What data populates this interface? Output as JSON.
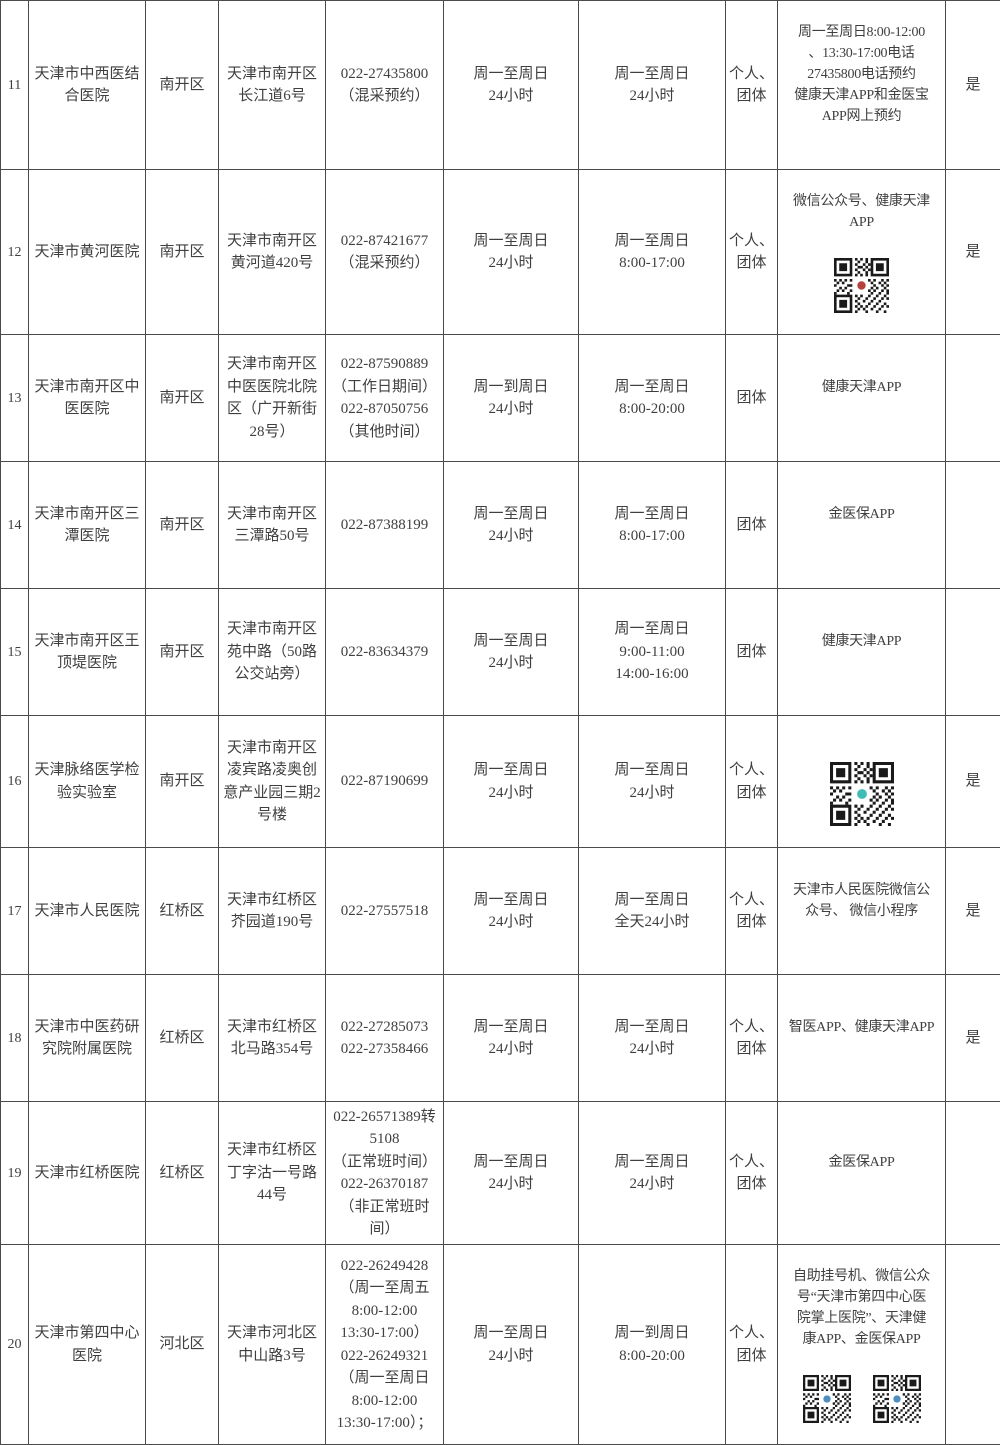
{
  "colors": {
    "border": "#4a4a4a",
    "text": "#3f3f3f",
    "qr_center_red": "#b5423c",
    "qr_center_teal": "#3fbdb4",
    "qr_center_blue": "#4f8fc0"
  },
  "table": {
    "rows": [
      {
        "index": "11",
        "name": "天津市中西医结\n合医院",
        "district": "南开区",
        "address": "天津市南开区\n长江道6号",
        "phone": "022-27435800\n（混采预约）",
        "hours1": "周一至周日\n24小时",
        "hours2": "周一至周日\n24小时",
        "target": "个人、\n团体",
        "appointment": "周一至周日8:00-12:00\n、13:30-17:00电话\n27435800电话预约\n健康天津APP和金医宝\nAPP网上预约",
        "confirm": "是",
        "qr": null
      },
      {
        "index": "12",
        "name": "天津市黄河医院",
        "district": "南开区",
        "address": "天津市南开区\n黄河道420号",
        "phone": "022-87421677\n（混采预约）",
        "hours1": "周一至周日\n24小时",
        "hours2": "周一至周日\n8:00-17:00",
        "target": "个人、\n团体",
        "appointment": "微信公众号、健康天津\nAPP",
        "confirm": "是",
        "qr": {
          "count": 1,
          "color": "#b5423c",
          "size": 55
        }
      },
      {
        "index": "13",
        "name": "天津市南开区中\n医医院",
        "district": "南开区",
        "address": "天津市南开区\n中医医院北院\n区（广开新街\n28号）",
        "phone": "022-87590889\n（工作日期间）\n022-87050756\n（其他时间）",
        "hours1": "周一到周日\n24小时",
        "hours2": "周一至周日\n8:00-20:00",
        "target": "团体",
        "appointment": "健康天津APP",
        "confirm": "",
        "qr": null
      },
      {
        "index": "14",
        "name": "天津市南开区三\n潭医院",
        "district": "南开区",
        "address": "天津市南开区\n三潭路50号",
        "phone": "022-87388199",
        "hours1": "周一至周日\n24小时",
        "hours2": "周一至周日\n8:00-17:00",
        "target": "团体",
        "appointment": "金医保APP",
        "confirm": "",
        "qr": null
      },
      {
        "index": "15",
        "name": "天津市南开区王\n顶堤医院",
        "district": "南开区",
        "address": "天津市南开区\n苑中路（50路\n公交站旁）",
        "phone": "022-83634379",
        "hours1": "周一至周日\n24小时",
        "hours2": "周一至周日\n9:00-11:00\n14:00-16:00",
        "target": "团体",
        "appointment": "健康天津APP",
        "confirm": "",
        "qr": null
      },
      {
        "index": "16",
        "name": "天津脉络医学检\n验实验室",
        "district": "南开区",
        "address": "天津市南开区\n凌宾路凌奥创\n意产业园三期2\n号楼",
        "phone": "022-87190699",
        "hours1": "周一至周日\n24小时",
        "hours2": "周一至周日\n24小时",
        "target": "个人、\n团体",
        "appointment": "",
        "confirm": "是",
        "qr": {
          "count": 1,
          "color": "#3fbdb4",
          "size": 64
        }
      },
      {
        "index": "17",
        "name": "天津市人民医院",
        "district": "红桥区",
        "address": "天津市红桥区\n芥园道190号",
        "phone": "022-27557518",
        "hours1": "周一至周日\n24小时",
        "hours2": "周一至周日\n全天24小时",
        "target": "个人、\n团体",
        "appointment": "天津市人民医院微信公\n众号、 微信小程序",
        "confirm": "是",
        "qr": null
      },
      {
        "index": "18",
        "name": "天津市中医药研\n究院附属医院",
        "district": "红桥区",
        "address": "天津市红桥区\n北马路354号",
        "phone": "022-27285073\n022-27358466",
        "hours1": "周一至周日\n24小时",
        "hours2": "周一至周日\n24小时",
        "target": "个人、\n团体",
        "appointment": "智医APP、健康天津APP",
        "confirm": "是",
        "qr": null
      },
      {
        "index": "19",
        "name": "天津市红桥医院",
        "district": "红桥区",
        "address": "天津市红桥区\n丁字沽一号路\n44号",
        "phone": "022-26571389转\n5108\n（正常班时间）\n022-26370187\n（非正常班时\n间）",
        "hours1": "周一至周日\n24小时",
        "hours2": "周一至周日\n24小时",
        "target": "个人、\n团体",
        "appointment": "金医保APP",
        "confirm": "",
        "qr": null
      },
      {
        "index": "20",
        "name": "天津市第四中心\n医院",
        "district": "河北区",
        "address": "天津市河北区\n中山路3号",
        "phone": "022-26249428\n（周一至周五\n8:00-12:00\n13:30-17:00）\n022-26249321\n（周一至周日\n8:00-12:00\n13:30-17:00）；",
        "hours1": "周一至周日\n24小时",
        "hours2": "周一到周日\n8:00-20:00",
        "target": "个人、\n团体",
        "appointment": "自助挂号机、微信公众\n号“天津市第四中心医\n院掌上医院”、天津健\n康APP、金医保APP",
        "confirm": "",
        "qr": {
          "count": 2,
          "color": "#4f8fc0",
          "size": 48
        }
      }
    ]
  }
}
